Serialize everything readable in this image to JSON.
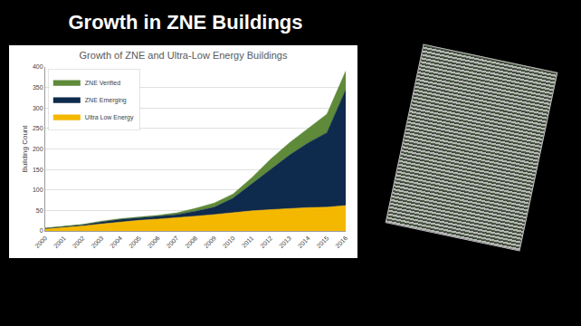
{
  "slide": {
    "title": "Growth in ZNE Buildings"
  },
  "chart_data": {
    "type": "area",
    "title": "Growth of ZNE and Ultra-Low Energy Buildings",
    "y_label": "Building Count",
    "x": [
      2000,
      2001,
      2002,
      2003,
      2004,
      2005,
      2006,
      2007,
      2008,
      2009,
      2010,
      2011,
      2012,
      2013,
      2014,
      2015,
      2016
    ],
    "xlim": [
      2000,
      2016
    ],
    "xticks": [
      2000,
      2001,
      2002,
      2003,
      2004,
      2005,
      2006,
      2007,
      2008,
      2009,
      2010,
      2011,
      2012,
      2013,
      2014,
      2015,
      2016
    ],
    "ylim": [
      0,
      400
    ],
    "yticks": [
      0,
      50,
      100,
      150,
      200,
      250,
      300,
      350,
      400
    ],
    "stacked": true,
    "grid": true,
    "legend": "upper left",
    "series": [
      {
        "name": "Ultra Low Energy",
        "color": "#f5b800",
        "values": [
          5,
          8,
          12,
          17,
          22,
          26,
          29,
          32,
          36,
          40,
          45,
          49,
          52,
          55,
          57,
          58,
          62
        ]
      },
      {
        "name": "ZNE Emerging",
        "color": "#0e2a4c",
        "values": [
          1,
          2,
          3,
          5,
          6,
          6,
          7,
          8,
          12,
          18,
          35,
          66,
          98,
          130,
          158,
          182,
          283
        ]
      },
      {
        "name": "ZNE Verified",
        "color": "#5f8a3a",
        "values": [
          1,
          1,
          1,
          2,
          2,
          2,
          2,
          4,
          7,
          10,
          10,
          15,
          25,
          30,
          35,
          45,
          45
        ]
      }
    ]
  }
}
